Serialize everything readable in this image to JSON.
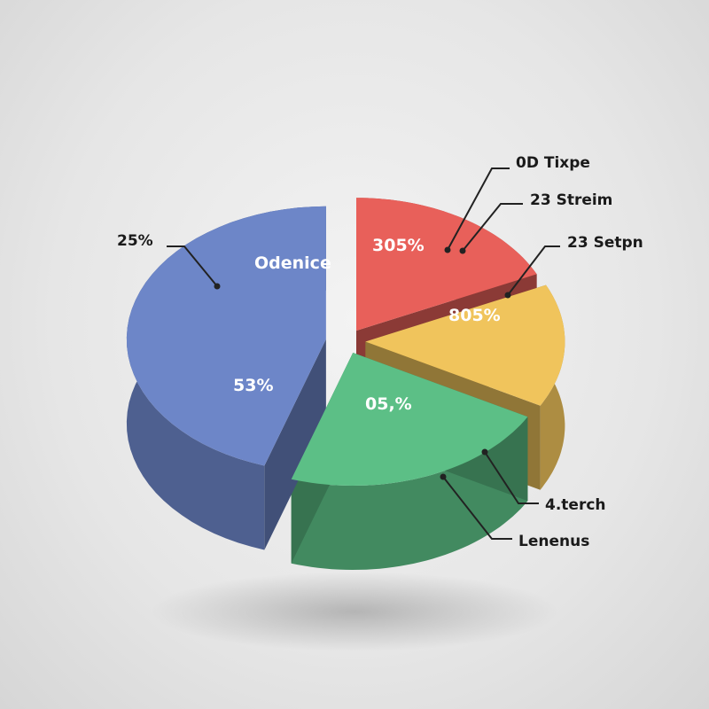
{
  "chart_data": {
    "type": "pie",
    "style": "3d-exploded",
    "slices": [
      {
        "label": "305%",
        "value": 18,
        "color": "#e8605a"
      },
      {
        "label": "805%",
        "value": 15,
        "color": "#f0c45c"
      },
      {
        "label": "05,%",
        "value": 22,
        "color": "#5cbf86"
      },
      {
        "label": "53%",
        "value": 45,
        "color": "#6d86c8",
        "title": "Odenice"
      }
    ],
    "callouts": [
      "0D Tixpe",
      "23 Streim",
      "23 Setpn",
      "4.terch",
      "Lenenus",
      "25%"
    ]
  }
}
